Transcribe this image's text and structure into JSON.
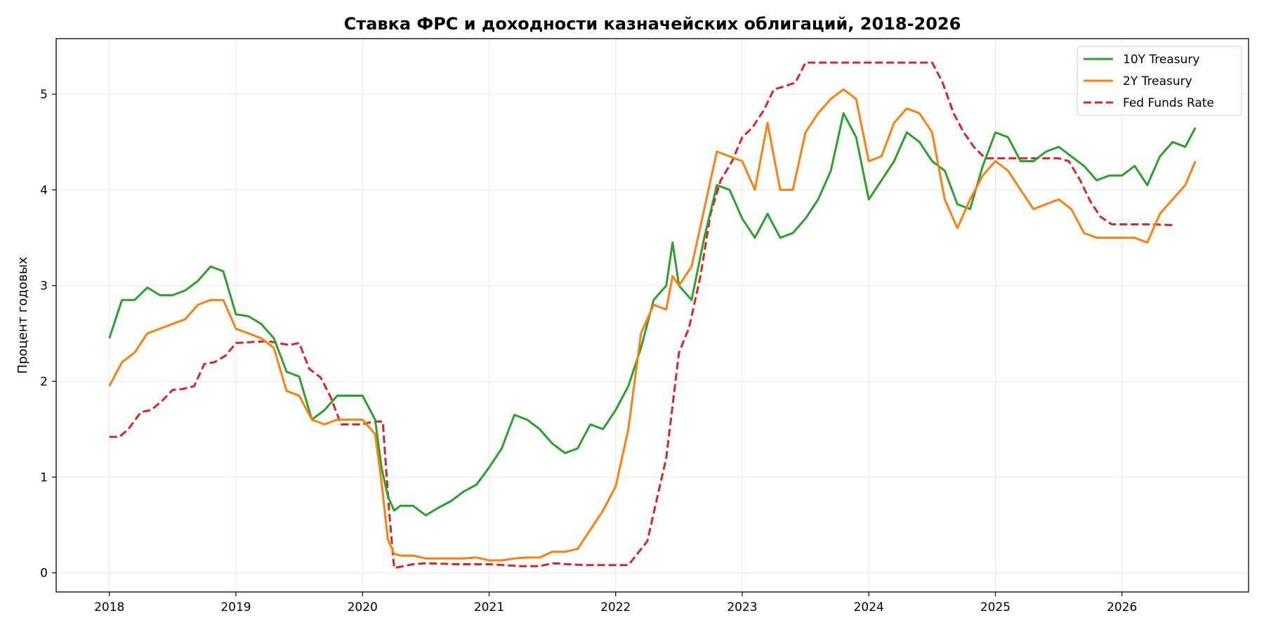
{
  "chart_data": {
    "type": "line",
    "title": "Ставка ФРС и доходности казначейских облигаций, 2018-2026",
    "xlabel": "",
    "ylabel": "Процент годовых",
    "xlim": [
      2017.58,
      2027.0
    ],
    "ylim": [
      -0.2,
      5.58
    ],
    "x_ticks": [
      2018,
      2019,
      2020,
      2021,
      2022,
      2023,
      2024,
      2025,
      2026
    ],
    "y_ticks": [
      0,
      1,
      2,
      3,
      4,
      5
    ],
    "grid": true,
    "legend_position": "top-right",
    "series": [
      {
        "name": "10Y Treasury",
        "color": "#2ca02c",
        "style": "solid",
        "x": [
          2018.0,
          2018.1,
          2018.2,
          2018.3,
          2018.4,
          2018.5,
          2018.6,
          2018.7,
          2018.8,
          2018.9,
          2019.0,
          2019.1,
          2019.2,
          2019.3,
          2019.4,
          2019.5,
          2019.6,
          2019.7,
          2019.8,
          2019.9,
          2020.0,
          2020.1,
          2020.15,
          2020.2,
          2020.25,
          2020.3,
          2020.4,
          2020.5,
          2020.6,
          2020.7,
          2020.8,
          2020.9,
          2021.0,
          2021.1,
          2021.2,
          2021.3,
          2021.4,
          2021.5,
          2021.6,
          2021.7,
          2021.8,
          2021.9,
          2022.0,
          2022.1,
          2022.2,
          2022.3,
          2022.4,
          2022.45,
          2022.5,
          2022.6,
          2022.7,
          2022.8,
          2022.9,
          2023.0,
          2023.1,
          2023.2,
          2023.3,
          2023.4,
          2023.5,
          2023.6,
          2023.7,
          2023.8,
          2023.9,
          2024.0,
          2024.1,
          2024.2,
          2024.3,
          2024.4,
          2024.5,
          2024.6,
          2024.7,
          2024.8,
          2024.9,
          2025.0,
          2025.1,
          2025.2,
          2025.3,
          2025.4,
          2025.5,
          2025.6,
          2025.7,
          2025.8,
          2025.9,
          2026.0,
          2026.1,
          2026.2,
          2026.3,
          2026.4,
          2026.5,
          2026.58
        ],
        "values": [
          2.45,
          2.85,
          2.85,
          2.98,
          2.9,
          2.9,
          2.95,
          3.05,
          3.2,
          3.15,
          2.7,
          2.68,
          2.6,
          2.45,
          2.1,
          2.05,
          1.6,
          1.7,
          1.85,
          1.85,
          1.85,
          1.6,
          1.1,
          0.8,
          0.65,
          0.7,
          0.7,
          0.6,
          0.68,
          0.75,
          0.85,
          0.92,
          1.1,
          1.3,
          1.65,
          1.6,
          1.5,
          1.35,
          1.25,
          1.3,
          1.55,
          1.5,
          1.7,
          1.95,
          2.35,
          2.85,
          3.0,
          3.45,
          3.0,
          2.85,
          3.5,
          4.05,
          4.0,
          3.7,
          3.5,
          3.75,
          3.5,
          3.55,
          3.7,
          3.9,
          4.2,
          4.8,
          4.55,
          3.9,
          4.1,
          4.3,
          4.6,
          4.5,
          4.3,
          4.2,
          3.85,
          3.8,
          4.25,
          4.6,
          4.55,
          4.3,
          4.3,
          4.4,
          4.45,
          4.35,
          4.25,
          4.1,
          4.15,
          4.15,
          4.25,
          4.05,
          4.35,
          4.5,
          4.45,
          4.65
        ]
      },
      {
        "name": "2Y Treasury",
        "color": "#ff7f0e",
        "style": "solid",
        "x": [
          2018.0,
          2018.1,
          2018.2,
          2018.3,
          2018.4,
          2018.5,
          2018.6,
          2018.7,
          2018.8,
          2018.9,
          2019.0,
          2019.1,
          2019.2,
          2019.3,
          2019.4,
          2019.5,
          2019.6,
          2019.7,
          2019.8,
          2019.9,
          2020.0,
          2020.1,
          2020.15,
          2020.2,
          2020.25,
          2020.3,
          2020.4,
          2020.5,
          2020.6,
          2020.7,
          2020.8,
          2020.9,
          2021.0,
          2021.1,
          2021.2,
          2021.3,
          2021.4,
          2021.5,
          2021.6,
          2021.7,
          2021.8,
          2021.9,
          2022.0,
          2022.1,
          2022.2,
          2022.3,
          2022.4,
          2022.45,
          2022.5,
          2022.6,
          2022.7,
          2022.8,
          2022.9,
          2023.0,
          2023.1,
          2023.2,
          2023.3,
          2023.4,
          2023.5,
          2023.6,
          2023.7,
          2023.8,
          2023.9,
          2024.0,
          2024.1,
          2024.2,
          2024.3,
          2024.4,
          2024.5,
          2024.6,
          2024.7,
          2024.8,
          2024.9,
          2025.0,
          2025.1,
          2025.2,
          2025.3,
          2025.4,
          2025.5,
          2025.6,
          2025.7,
          2025.8,
          2025.9,
          2026.0,
          2026.1,
          2026.2,
          2026.3,
          2026.4,
          2026.5,
          2026.58
        ],
        "values": [
          1.95,
          2.2,
          2.3,
          2.5,
          2.55,
          2.6,
          2.65,
          2.8,
          2.85,
          2.85,
          2.55,
          2.5,
          2.45,
          2.35,
          1.9,
          1.85,
          1.6,
          1.55,
          1.6,
          1.6,
          1.6,
          1.45,
          0.95,
          0.35,
          0.2,
          0.18,
          0.18,
          0.15,
          0.15,
          0.15,
          0.15,
          0.16,
          0.13,
          0.13,
          0.15,
          0.16,
          0.16,
          0.22,
          0.22,
          0.25,
          0.45,
          0.65,
          0.9,
          1.5,
          2.5,
          2.8,
          2.75,
          3.1,
          3.0,
          3.2,
          3.8,
          4.4,
          4.35,
          4.3,
          4.0,
          4.7,
          4.0,
          4.0,
          4.6,
          4.8,
          4.95,
          5.05,
          4.95,
          4.3,
          4.35,
          4.7,
          4.85,
          4.8,
          4.6,
          3.9,
          3.6,
          3.9,
          4.15,
          4.3,
          4.2,
          4.0,
          3.8,
          3.85,
          3.9,
          3.8,
          3.55,
          3.5,
          3.5,
          3.5,
          3.5,
          3.45,
          3.75,
          3.9,
          4.05,
          4.3
        ]
      },
      {
        "name": "Fed Funds Rate",
        "color": "#d62728",
        "style": "dashed",
        "x": [
          2018.0,
          2018.08,
          2018.15,
          2018.25,
          2018.33,
          2018.42,
          2018.5,
          2018.58,
          2018.67,
          2018.75,
          2018.83,
          2018.92,
          2019.0,
          2019.25,
          2019.42,
          2019.5,
          2019.58,
          2019.67,
          2019.75,
          2019.83,
          2019.92,
          2020.0,
          2020.08,
          2020.16,
          2020.21,
          2020.25,
          2020.4,
          2020.5,
          2020.75,
          2021.0,
          2021.25,
          2021.4,
          2021.5,
          2021.75,
          2022.0,
          2022.1,
          2022.25,
          2022.4,
          2022.5,
          2022.58,
          2022.67,
          2022.75,
          2022.83,
          2022.92,
          2023.0,
          2023.08,
          2023.17,
          2023.25,
          2023.33,
          2023.42,
          2023.5,
          2023.58,
          2023.67,
          2023.75,
          2024.0,
          2024.25,
          2024.5,
          2024.58,
          2024.67,
          2024.75,
          2024.83,
          2024.92,
          2025.0,
          2025.25,
          2025.5,
          2025.58,
          2025.67,
          2025.75,
          2025.83,
          2025.92,
          2026.0,
          2026.25,
          2026.42
        ],
        "values": [
          1.42,
          1.42,
          1.5,
          1.68,
          1.7,
          1.8,
          1.91,
          1.92,
          1.95,
          2.18,
          2.2,
          2.27,
          2.4,
          2.42,
          2.38,
          2.4,
          2.13,
          2.04,
          1.83,
          1.55,
          1.55,
          1.55,
          1.58,
          1.58,
          0.65,
          0.05,
          0.09,
          0.1,
          0.09,
          0.09,
          0.07,
          0.07,
          0.1,
          0.08,
          0.08,
          0.08,
          0.33,
          1.2,
          2.3,
          2.56,
          3.1,
          3.75,
          4.1,
          4.3,
          4.55,
          4.65,
          4.83,
          5.05,
          5.08,
          5.12,
          5.33,
          5.33,
          5.33,
          5.33,
          5.33,
          5.33,
          5.33,
          5.13,
          4.8,
          4.6,
          4.45,
          4.33,
          4.33,
          4.33,
          4.33,
          4.3,
          4.1,
          3.88,
          3.72,
          3.64,
          3.64,
          3.64,
          3.63
        ]
      }
    ]
  }
}
